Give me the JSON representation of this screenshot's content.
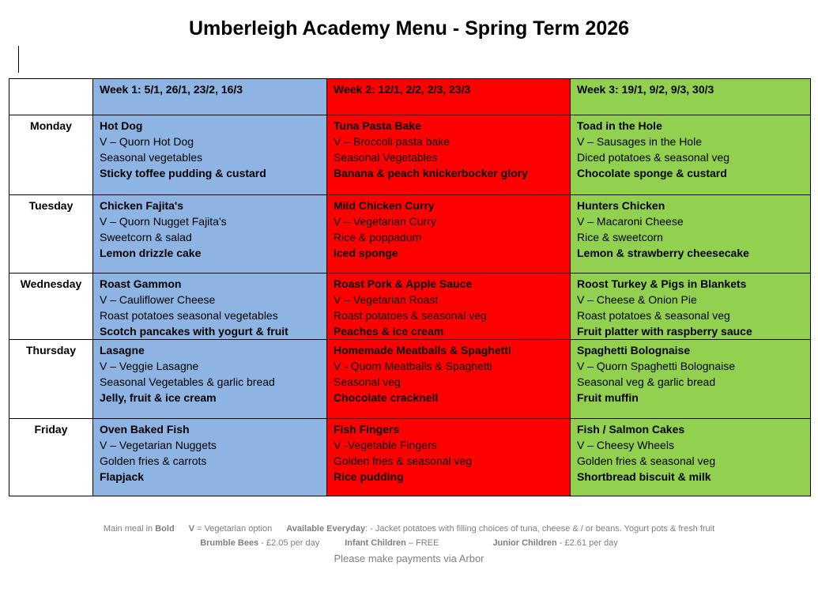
{
  "title": "Umberleigh Academy Menu - Spring Term 2026",
  "colors": {
    "week1": "#8eb4e3",
    "week2": "#ff0000",
    "week3": "#92d050"
  },
  "weeks": [
    "Week 1: 5/1, 26/1, 23/2, 16/3",
    "Week 2: 12/1, 2/2, 2/3, 23/3",
    "Week 3: 19/1, 9/2, 9/3, 30/3"
  ],
  "days": [
    {
      "day": "Monday",
      "weeks": [
        [
          "Hot Dog",
          "V – Quorn Hot Dog",
          "Seasonal vegetables",
          "Sticky toffee pudding & custard"
        ],
        [
          "Tuna Pasta Bake",
          "V – Broccoli pasta bake",
          "Seasonal Vegetables",
          "Banana & peach knickerbocker glory"
        ],
        [
          "Toad in the Hole",
          "V – Sausages in the Hole",
          "Diced potatoes & seasonal veg",
          "Chocolate sponge & custard"
        ]
      ]
    },
    {
      "day": "Tuesday",
      "weeks": [
        [
          "Chicken Fajita's",
          "V – Quorn Nugget Fajita's",
          "Sweetcorn & salad",
          "Lemon drizzle cake"
        ],
        [
          "Mild Chicken Curry",
          "V – Vegetarian Curry",
          "Rice & poppadum",
          "Iced sponge"
        ],
        [
          "Hunters Chicken",
          "V – Macaroni Cheese",
          "Rice & sweetcorn",
          "Lemon & strawberry cheesecake"
        ]
      ]
    },
    {
      "day": "Wednesday",
      "weeks": [
        [
          "Roast Gammon",
          "V – Cauliflower Cheese",
          "Roast potatoes seasonal vegetables",
          "Scotch pancakes with yogurt & fruit"
        ],
        [
          "Roast Pork & Apple Sauce",
          "V – Vegetarian Roast",
          "Roast potatoes & seasonal veg",
          "Peaches & ice cream"
        ],
        [
          "Roost Turkey & Pigs in Blankets",
          "V – Cheese & Onion Pie",
          "Roast potatoes & seasonal veg",
          "Fruit platter with raspberry sauce"
        ]
      ]
    },
    {
      "day": "Thursday",
      "weeks": [
        [
          "Lasagne",
          "V – Veggie Lasagne",
          "Seasonal Vegetables & garlic bread",
          "Jelly, fruit & ice cream"
        ],
        [
          "Homemade Meatballs & Spaghetti",
          "V -   Quorn Meatballs & Spaghetti",
          "Seasonal veg",
          "Chocolate cracknell"
        ],
        [
          "Spaghetti Bolognaise",
          "V – Quorn Spaghetti Bolognaise",
          "Seasonal veg & garlic bread",
          "Fruit muffin"
        ]
      ]
    },
    {
      "day": "Friday",
      "weeks": [
        [
          "Oven Baked Fish",
          "V – Vegetarian Nuggets",
          "Golden fries & carrots",
          "Flapjack"
        ],
        [
          "Fish Fingers",
          "V -Vegetable Fingers",
          "Golden fries & seasonal veg",
          "Rice pudding"
        ],
        [
          "Fish / Salmon Cakes",
          "V – Cheesy Wheels",
          "Golden fries & seasonal veg",
          "Shortbread biscuit & milk"
        ]
      ]
    }
  ],
  "footer": {
    "main_prefix": "Main meal in ",
    "main_bold": "Bold",
    "v_bold": "V",
    " v_text": "",
    "v_text": " = Vegetarian option",
    "everyday_bold": "Available Everyday",
    "everyday_text": ": - Jacket potatoes with filling choices of tuna, cheese & / or beans.  Yogurt pots & fresh fruit",
    "bees_bold": "Brumble Bees",
    "bees_text": " - £2.05 per day",
    "infant_bold": "Infant Children",
    "infant_text": " – FREE",
    "junior_bold": "Junior Children",
    "junior_text": " - £2.61 per day",
    "payment": "Please make payments via Arbor"
  }
}
